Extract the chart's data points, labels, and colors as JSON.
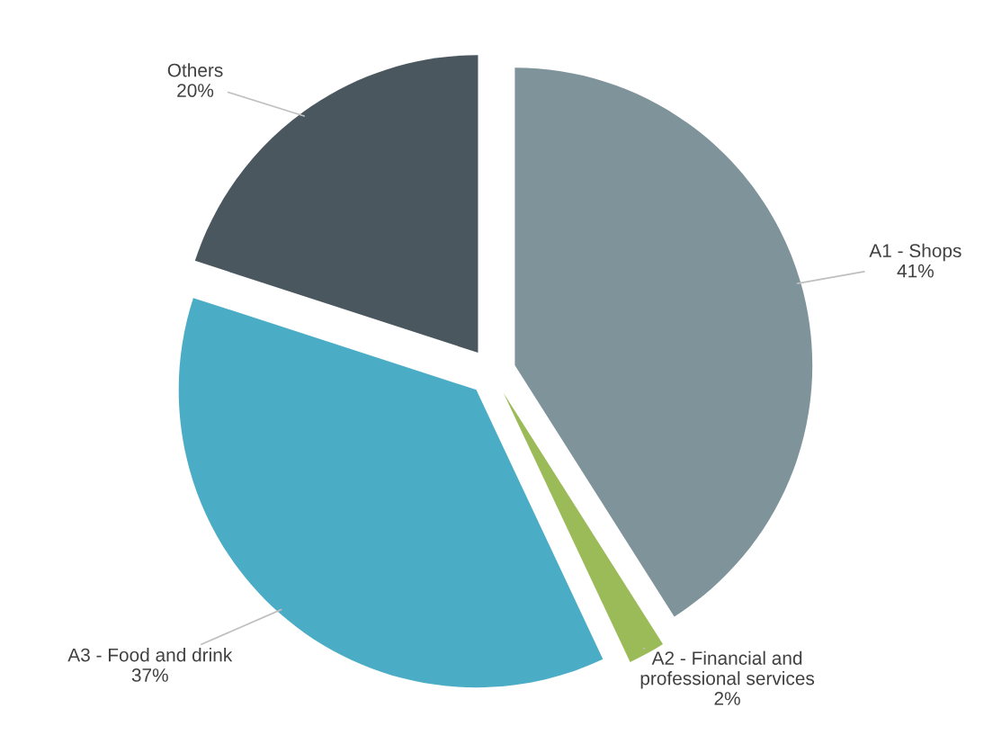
{
  "chart_data": {
    "type": "pie",
    "categories": [
      "A1 - Shops",
      "A2 - Financial and\nprofessional services",
      "A3 - Food and drink",
      "Others"
    ],
    "values": [
      41,
      2,
      37,
      20
    ],
    "value_labels": [
      "41%",
      "2%",
      "37%",
      "20%"
    ],
    "colors": [
      "#7f939b",
      "#9bbb59",
      "#4bacc6",
      "#4a575e"
    ]
  }
}
